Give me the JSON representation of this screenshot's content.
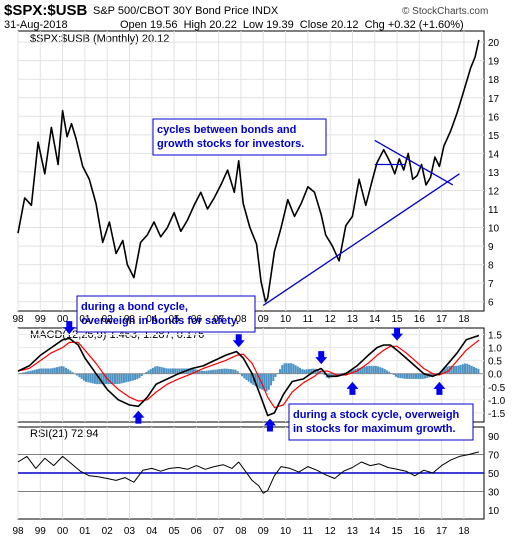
{
  "header": {
    "symbol": "$SPX:$USB",
    "name": "S&P 500/CBOT 30Y Bond Price INDX",
    "date": "31-Aug-2018",
    "quote_line": "Open 19.56  High 20.22  Low 19.39  Close 20.12  Chg +0.32 (+1.60%)",
    "watermark": "© StockCharts.com"
  },
  "colors": {
    "price": "#000000",
    "trendline": "#0000cc",
    "macd": "#000000",
    "signal": "#ff0000",
    "histogram": "#1f77b4",
    "rsi": "#000000",
    "level_line": "#0000cc",
    "annotation_border": "#0000cc",
    "arrow": "#0000ee"
  },
  "chart_data": [
    {
      "type": "line",
      "title": "$SPX:$USB (Monthly) 20.12",
      "x_tick_labels": [
        "98",
        "99",
        "00",
        "01",
        "02",
        "03",
        "04",
        "05",
        "06",
        "07",
        "08",
        "09",
        "10",
        "11",
        "12",
        "13",
        "14",
        "15",
        "16",
        "17",
        "18"
      ],
      "y_ticks": [
        6,
        7,
        8,
        9,
        10,
        11,
        12,
        13,
        14,
        15,
        16,
        17,
        18,
        19,
        20
      ],
      "ylim": [
        5.5,
        20.6
      ],
      "series": [
        {
          "x": [
            1998.0,
            1998.3,
            1998.6,
            1998.9,
            1999.2,
            1999.5,
            1999.8,
            2000.0,
            2000.2,
            2000.4,
            2000.6,
            2000.9,
            2001.2,
            2001.5,
            2001.8,
            2002.1,
            2002.4,
            2002.7,
            2002.9,
            2003.2,
            2003.5,
            2003.8,
            2004.1,
            2004.4,
            2004.7,
            2005.0,
            2005.3,
            2005.6,
            2005.9,
            2006.2,
            2006.5,
            2006.8,
            2007.1,
            2007.4,
            2007.7,
            2007.9,
            2008.1,
            2008.4,
            2008.7,
            2008.9,
            2009.1,
            2009.2,
            2009.5,
            2009.8,
            2010.1,
            2010.4,
            2010.7,
            2011.0,
            2011.3,
            2011.6,
            2011.8,
            2012.1,
            2012.4,
            2012.7,
            2013.0,
            2013.3,
            2013.6,
            2013.9,
            2014.1,
            2014.4,
            2014.7,
            2014.9,
            2015.1,
            2015.3,
            2015.5,
            2015.7,
            2015.9,
            2016.1,
            2016.3,
            2016.5,
            2016.7,
            2016.9,
            2017.1,
            2017.4,
            2017.7,
            2017.9,
            2018.1,
            2018.3,
            2018.5,
            2018.67
          ],
          "y": [
            9.7,
            11.6,
            11.2,
            14.6,
            12.9,
            15.4,
            13.4,
            16.3,
            14.9,
            15.6,
            14.8,
            13.3,
            12.6,
            11.3,
            9.2,
            10.3,
            8.6,
            9.3,
            8.0,
            7.3,
            9.2,
            9.6,
            10.3,
            9.5,
            10.0,
            10.8,
            9.8,
            10.4,
            11.2,
            11.9,
            11.0,
            11.6,
            12.3,
            13.1,
            11.9,
            13.6,
            11.3,
            10.0,
            9.1,
            7.1,
            6.0,
            6.2,
            8.7,
            10.0,
            11.5,
            10.6,
            11.3,
            12.2,
            11.9,
            10.7,
            9.6,
            9.0,
            8.2,
            10.1,
            10.6,
            12.6,
            11.2,
            12.6,
            13.5,
            14.2,
            13.5,
            12.9,
            13.7,
            13.1,
            14.0,
            12.6,
            12.8,
            13.4,
            12.3,
            12.7,
            13.8,
            13.3,
            14.4,
            15.2,
            16.2,
            17.0,
            17.8,
            18.6,
            19.2,
            20.12
          ]
        }
      ],
      "trendlines": [
        {
          "x": [
            2009.0,
            2017.8
          ],
          "y": [
            5.8,
            12.9
          ]
        },
        {
          "x": [
            2014.0,
            2017.5
          ],
          "y": [
            14.7,
            12.3
          ]
        },
        {
          "x": [
            2014.0,
            2015.4
          ],
          "y": [
            13.4,
            13.4
          ]
        }
      ],
      "annotations": [
        {
          "lines": [
            "cycles between bonds and",
            "growth stocks for investors."
          ]
        },
        {
          "lines": [
            "during a bond cycle,",
            "overweigh in bonds for safety."
          ]
        }
      ]
    },
    {
      "type": "line",
      "title": "MACD(12,26,9) 1.463, 1.287, 0.176",
      "y_ticks": [
        -1.5,
        -1.0,
        -0.5,
        0.0,
        0.5,
        1.0,
        1.5
      ],
      "ylim": [
        -1.85,
        1.75
      ],
      "series": [
        {
          "name": "MACD",
          "x": [
            1998.0,
            1998.5,
            1999.0,
            1999.5,
            2000.0,
            2000.3,
            2000.7,
            2001.0,
            2001.5,
            2002.0,
            2002.5,
            2003.0,
            2003.4,
            2003.8,
            2004.2,
            2004.7,
            2005.2,
            2005.8,
            2006.3,
            2006.8,
            2007.3,
            2007.8,
            2008.1,
            2008.5,
            2008.9,
            2009.2,
            2009.5,
            2009.9,
            2010.3,
            2010.8,
            2011.3,
            2011.6,
            2011.9,
            2012.3,
            2012.7,
            2013.2,
            2013.7,
            2014.1,
            2014.4,
            2014.7,
            2015.0,
            2015.4,
            2015.8,
            2016.2,
            2016.6,
            2016.9,
            2017.3,
            2017.7,
            2018.1,
            2018.67
          ],
          "y": [
            0.1,
            0.3,
            0.7,
            1.0,
            1.3,
            1.35,
            1.1,
            0.6,
            0.0,
            -0.6,
            -1.0,
            -1.2,
            -1.25,
            -0.9,
            -0.4,
            -0.2,
            0.0,
            0.2,
            0.3,
            0.5,
            0.7,
            0.85,
            0.6,
            0.0,
            -0.9,
            -1.6,
            -1.5,
            -0.8,
            -0.3,
            -0.2,
            0.1,
            0.2,
            -0.1,
            -0.1,
            0.0,
            0.3,
            0.7,
            1.0,
            1.1,
            1.1,
            0.9,
            0.6,
            0.3,
            0.0,
            -0.1,
            0.0,
            0.4,
            0.8,
            1.3,
            1.463
          ]
        },
        {
          "name": "Signal",
          "x": [
            1998.0,
            1998.5,
            1999.0,
            1999.5,
            2000.0,
            2000.3,
            2000.7,
            2001.0,
            2001.5,
            2002.0,
            2002.5,
            2003.0,
            2003.4,
            2003.8,
            2004.2,
            2004.7,
            2005.2,
            2005.8,
            2006.3,
            2006.8,
            2007.3,
            2007.8,
            2008.1,
            2008.5,
            2008.9,
            2009.2,
            2009.5,
            2009.9,
            2010.3,
            2010.8,
            2011.3,
            2011.6,
            2011.9,
            2012.3,
            2012.7,
            2013.2,
            2013.7,
            2014.1,
            2014.4,
            2014.7,
            2015.0,
            2015.4,
            2015.8,
            2016.2,
            2016.6,
            2016.9,
            2017.3,
            2017.7,
            2018.1,
            2018.67
          ],
          "y": [
            0.1,
            0.2,
            0.5,
            0.8,
            1.0,
            1.2,
            1.2,
            0.9,
            0.4,
            -0.2,
            -0.6,
            -0.9,
            -1.05,
            -1.0,
            -0.7,
            -0.4,
            -0.2,
            0.0,
            0.2,
            0.35,
            0.5,
            0.7,
            0.75,
            0.4,
            -0.3,
            -0.9,
            -1.3,
            -1.2,
            -0.7,
            -0.35,
            -0.1,
            0.1,
            0.1,
            -0.05,
            -0.05,
            0.1,
            0.4,
            0.7,
            0.9,
            1.05,
            1.05,
            0.8,
            0.5,
            0.2,
            0.0,
            -0.05,
            0.1,
            0.5,
            0.9,
            1.287
          ]
        }
      ],
      "histogram_label": "0.176",
      "annotations": [
        {
          "lines": [
            "during a stock cycle, overweigh",
            "in stocks for maximum growth."
          ]
        }
      ]
    },
    {
      "type": "line",
      "title": "RSI(21) 72.94",
      "y_ticks": [
        10,
        30,
        50,
        70,
        90
      ],
      "ylim": [
        0,
        100
      ],
      "levels": [
        70,
        50,
        30
      ],
      "series": [
        {
          "name": "RSI",
          "x": [
            1998.0,
            1998.4,
            1998.8,
            1999.2,
            1999.6,
            2000.0,
            2000.4,
            2000.8,
            2001.2,
            2001.6,
            2002.0,
            2002.4,
            2002.8,
            2003.2,
            2003.6,
            2004.0,
            2004.4,
            2004.8,
            2005.2,
            2005.6,
            2006.0,
            2006.4,
            2006.8,
            2007.2,
            2007.6,
            2007.9,
            2008.2,
            2008.5,
            2008.8,
            2009.0,
            2009.2,
            2009.5,
            2009.8,
            2010.2,
            2010.6,
            2011.0,
            2011.4,
            2011.8,
            2012.2,
            2012.6,
            2013.0,
            2013.4,
            2013.8,
            2014.2,
            2014.6,
            2015.0,
            2015.4,
            2015.8,
            2016.2,
            2016.6,
            2017.0,
            2017.4,
            2017.8,
            2018.2,
            2018.67
          ],
          "y": [
            62,
            68,
            55,
            66,
            58,
            68,
            60,
            52,
            47,
            46,
            44,
            42,
            45,
            40,
            53,
            55,
            52,
            55,
            56,
            54,
            58,
            54,
            57,
            59,
            55,
            62,
            52,
            42,
            36,
            28,
            31,
            47,
            57,
            55,
            51,
            57,
            53,
            48,
            44,
            52,
            56,
            62,
            58,
            60,
            56,
            54,
            52,
            47,
            53,
            50,
            58,
            64,
            68,
            70,
            72.94
          ]
        }
      ]
    }
  ]
}
